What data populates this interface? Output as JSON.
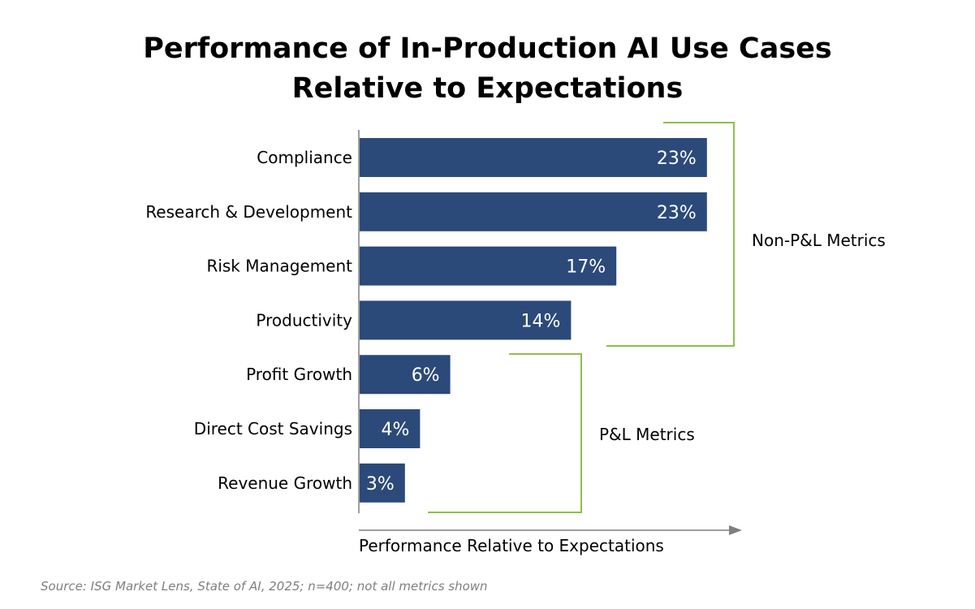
{
  "chart_data": {
    "type": "bar",
    "orientation": "horizontal",
    "title_lines": [
      "Performance of In-Production AI Use Cases",
      "Relative to Expectations"
    ],
    "categories": [
      "Compliance",
      "Research & Development",
      "Risk Management",
      "Productivity",
      "Profit Growth",
      "Direct Cost Savings",
      "Revenue Growth"
    ],
    "values": [
      23,
      23,
      17,
      14,
      6,
      4,
      3
    ],
    "value_labels": [
      "23%",
      "23%",
      "17%",
      "14%",
      "6%",
      "4%",
      "3%"
    ],
    "xlabel": "Performance Relative to Expectations",
    "ylabel": "",
    "groups": [
      {
        "label": "Non-P&L Metrics",
        "categories": [
          "Compliance",
          "Research & Development",
          "Risk Management",
          "Productivity"
        ]
      },
      {
        "label": "P&L Metrics",
        "categories": [
          "Profit Growth",
          "Direct Cost Savings",
          "Revenue Growth"
        ]
      }
    ],
    "source": "Source: ISG Market Lens, State of AI, 2025; n=400;  not all metrics shown",
    "colors": {
      "bar": "#2b4a7a",
      "bracket": "#8dc04a",
      "axis": "#7f7f7f",
      "label": "#ffffff"
    },
    "grid": false,
    "legend": "none"
  }
}
